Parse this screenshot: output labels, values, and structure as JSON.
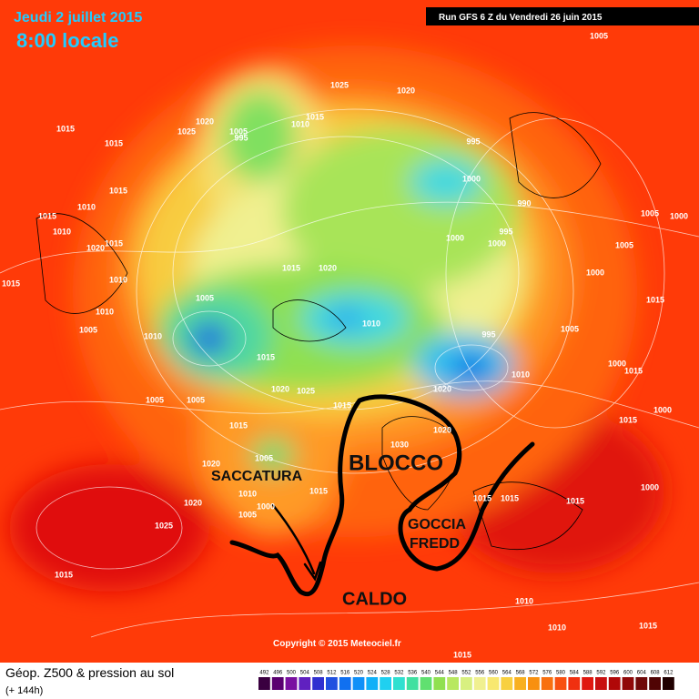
{
  "header": {
    "date": "Jeudi 2 juillet 2015",
    "time": "8:00 locale",
    "run": "Run GFS 6 Z du Vendredi 26 juin 2015"
  },
  "map": {
    "isobar_labels": [
      1015,
      1015,
      1015,
      1010,
      1015,
      1010,
      1015,
      1020,
      1015,
      1010,
      1010,
      1005,
      1010,
      1005,
      1015,
      1020,
      1020,
      1025,
      1005,
      995,
      1015,
      1010,
      1025,
      1020,
      1005,
      995,
      1000,
      990,
      995,
      1000,
      1000,
      1005,
      1000,
      1005,
      1000,
      1015,
      1005,
      995,
      1010,
      1015,
      1005,
      1005,
      1020,
      1025,
      1015,
      1020,
      1010,
      1015,
      1000,
      1000,
      1015,
      1015,
      1005,
      1030,
      1020,
      1020,
      1010,
      1000,
      1005,
      1015,
      1015,
      1015,
      1015,
      1000,
      1020,
      1025,
      1015,
      1010,
      1015,
      1010,
      1015
    ],
    "annotations": {
      "trough": "SACCATURA",
      "block": "BLOCCO",
      "drop_1": "GOCCIA",
      "drop_2": "FREDD",
      "heat": "CALDO"
    },
    "copyright": "Copyright © 2015 Meteociel.fr"
  },
  "legend": {
    "title": "Géop. Z500 & pression au sol",
    "lead": "(+ 144h)",
    "levels": [
      492,
      496,
      500,
      504,
      508,
      512,
      516,
      520,
      524,
      528,
      532,
      536,
      540,
      544,
      548,
      552,
      556,
      560,
      564,
      568,
      572,
      576,
      580,
      584,
      588,
      592,
      596,
      600,
      604,
      608,
      612
    ],
    "colors": [
      "#3a0040",
      "#5a0070",
      "#7a10a0",
      "#6020c0",
      "#3030d0",
      "#2050e0",
      "#1070f0",
      "#1090f8",
      "#10b0f8",
      "#20d0f0",
      "#30e0d0",
      "#40e0a0",
      "#60e070",
      "#90e050",
      "#b8e860",
      "#d8f080",
      "#f0f090",
      "#f8e870",
      "#f8d040",
      "#f8b020",
      "#f89010",
      "#f87010",
      "#f85010",
      "#f03010",
      "#e01810",
      "#c81010",
      "#b00808",
      "#900808",
      "#700808",
      "#500404",
      "#200000"
    ]
  }
}
